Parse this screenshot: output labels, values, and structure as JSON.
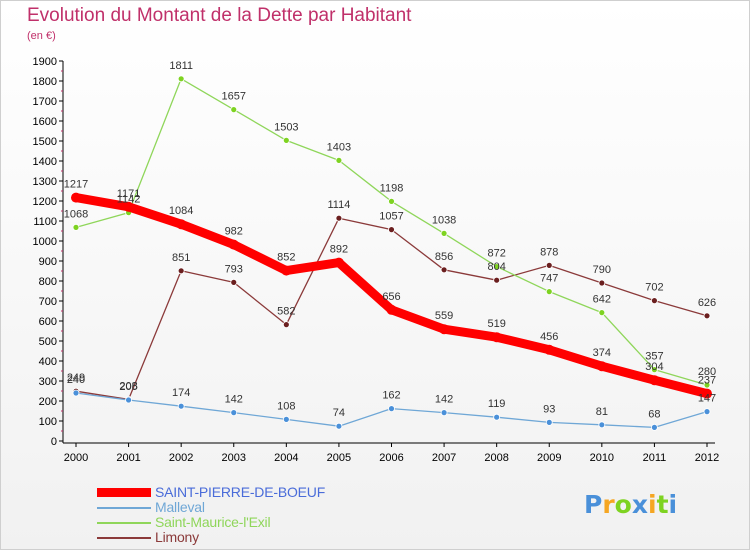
{
  "header": {
    "title": "Evolution du Montant de la Dette par Habitant",
    "subtitle": "(en €)"
  },
  "colors": {
    "title": "#c0306a",
    "axis": "#000000",
    "grid": "#c0306a"
  },
  "chart_data": {
    "type": "line",
    "title": "Evolution du Montant de la Dette par Habitant",
    "subtitle": "(en €)",
    "xlabel": "",
    "ylabel": "",
    "x": [
      "2000",
      "2001",
      "2002",
      "2003",
      "2004",
      "2005",
      "2006",
      "2007",
      "2008",
      "2009",
      "2010",
      "2011",
      "2012"
    ],
    "ylim": [
      0,
      1900
    ],
    "yticks": [
      0,
      100,
      200,
      300,
      400,
      500,
      600,
      700,
      800,
      900,
      1000,
      1100,
      1200,
      1300,
      1400,
      1500,
      1600,
      1700,
      1800,
      1900
    ],
    "grid": false,
    "legend_position": "bottom-left",
    "series": [
      {
        "name": "SAINT-PIERRE-DE-BOEUF",
        "color": "#ff0000",
        "values": [
          1217,
          1171,
          1084,
          982,
          852,
          892,
          656,
          559,
          519,
          456,
          374,
          304,
          237
        ]
      },
      {
        "name": "Malleval",
        "color": "#6fa7d6",
        "marker": "#4a90d9",
        "values": [
          240,
          205,
          174,
          142,
          108,
          74,
          162,
          142,
          119,
          93,
          81,
          68,
          147
        ]
      },
      {
        "name": "Saint-Maurice-l'Exil",
        "color": "#8fd65a",
        "marker": "#7ed321",
        "values": [
          1068,
          1142,
          1811,
          1657,
          1503,
          1403,
          1198,
          1038,
          872,
          747,
          642,
          357,
          280
        ]
      },
      {
        "name": "Limony",
        "color": "#8b3a3a",
        "marker": "#6b1f1f",
        "values": [
          249,
          208,
          851,
          793,
          582,
          1114,
          1057,
          856,
          804,
          878,
          790,
          702,
          626
        ]
      }
    ]
  },
  "logo": {
    "letters": [
      "P",
      "r",
      "o",
      "x",
      "i",
      "t",
      "i"
    ],
    "colors": [
      "#4a90d9",
      "#f5a623",
      "#7ed321",
      "#4a90d9",
      "#f5a623",
      "#7ed321",
      "#4a90d9"
    ]
  }
}
